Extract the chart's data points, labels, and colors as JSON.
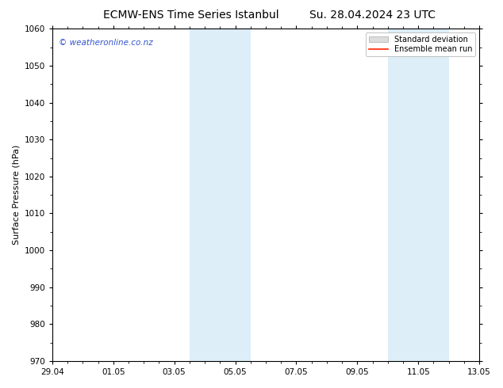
{
  "title_left": "ECMW-ENS Time Series Istanbul",
  "title_right": "Su. 28.04.2024 23 UTC",
  "ylabel": "Surface Pressure (hPa)",
  "ylim_bottom": 970,
  "ylim_top": 1060,
  "yticks": [
    970,
    980,
    990,
    1000,
    1010,
    1020,
    1030,
    1040,
    1050,
    1060
  ],
  "xtick_labels": [
    "29.04",
    "01.05",
    "03.05",
    "05.05",
    "07.05",
    "09.05",
    "11.05",
    "13.05"
  ],
  "xtick_positions": [
    0,
    2,
    4,
    6,
    8,
    10,
    12,
    14
  ],
  "shaded_regions": [
    {
      "x_start": 4.5,
      "x_end": 5.5
    },
    {
      "x_start": 5.5,
      "x_end": 6.5
    },
    {
      "x_start": 11.0,
      "x_end": 12.0
    },
    {
      "x_start": 12.0,
      "x_end": 13.0
    }
  ],
  "shade_color": "#ddeef8",
  "shade_alpha": 1.0,
  "bg_color": "#ffffff",
  "plot_bg_color": "#ffffff",
  "watermark_text": "© weatheronline.co.nz",
  "watermark_color": "#3355cc",
  "legend_std_label": "Standard deviation",
  "legend_mean_label": "Ensemble mean run",
  "legend_std_color": "#dddddd",
  "legend_mean_color": "#ff2200",
  "tick_color": "#000000",
  "title_fontsize": 10,
  "ylabel_fontsize": 8,
  "watermark_fontsize": 7.5,
  "legend_fontsize": 7
}
